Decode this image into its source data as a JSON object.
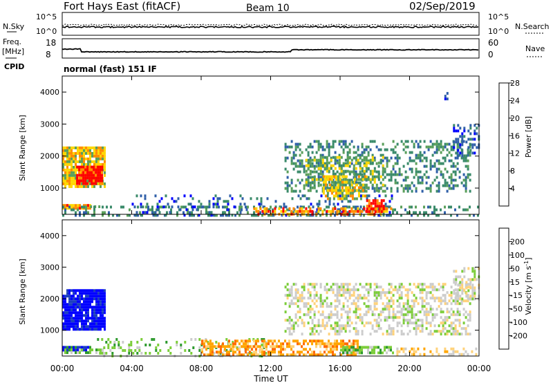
{
  "header": {
    "title": "Fort Hays East (fitACF)",
    "beam": "Beam 10",
    "date": "02/Sep/2019"
  },
  "noise_panel": {
    "left_label": "N.Sky",
    "right_label": "N.Search",
    "tick_top": "10^5",
    "tick_bottom": "10^0"
  },
  "freq_panel": {
    "left_label": "Freq.",
    "left_unit": "[MHz]",
    "right_label": "Nave",
    "left_ticks": [
      "18",
      "8"
    ],
    "right_ticks": [
      "60",
      "0"
    ],
    "cpid_label": "CPID"
  },
  "cpid_text": "normal (fast) 151 IF",
  "chart_data": [
    {
      "type": "heatmap",
      "parameter": "power",
      "ylabel": "Slant Range [km]",
      "ylim": [
        180,
        4500
      ],
      "yticks": [
        1000,
        2000,
        3000,
        4000
      ],
      "xlim": [
        0,
        24
      ],
      "colorbar_label": "Power [dB]",
      "colorbar_ticks": [
        "4",
        "8",
        "12",
        "16",
        "20",
        "24",
        "28"
      ],
      "colorbar_colors": [
        "#0000ff",
        "#2f5fa8",
        "#3a8a6a",
        "#5a9f5a",
        "#ffd700",
        "#ff8c00",
        "#ff0000"
      ],
      "regions": [
        {
          "t0": 0.0,
          "t1": 2.5,
          "r0": 1050,
          "r1": 2300,
          "level": 4,
          "density": 0.85
        },
        {
          "t0": 0.8,
          "t1": 2.3,
          "r0": 1150,
          "r1": 1700,
          "level": 6,
          "density": 0.9
        },
        {
          "t0": 0.0,
          "t1": 1.6,
          "r0": 350,
          "r1": 500,
          "level": 5,
          "density": 0.9
        },
        {
          "t0": 1.6,
          "t1": 2.3,
          "r0": 380,
          "r1": 460,
          "level": 3,
          "density": 0.7
        },
        {
          "t0": 0.0,
          "t1": 24.0,
          "r0": 180,
          "r1": 450,
          "level": 2,
          "density": 0.3
        },
        {
          "t0": 4.0,
          "t1": 19.0,
          "r0": 180,
          "r1": 800,
          "level": 1,
          "density": 0.18
        },
        {
          "t0": 11.0,
          "t1": 19.0,
          "r0": 180,
          "r1": 400,
          "level": 5,
          "density": 0.55
        },
        {
          "t0": 12.8,
          "t1": 23.5,
          "r0": 900,
          "r1": 2500,
          "level": 2,
          "density": 0.35
        },
        {
          "t0": 14.0,
          "t1": 18.5,
          "r0": 900,
          "r1": 2000,
          "level": 3,
          "density": 0.45
        },
        {
          "t0": 15.0,
          "t1": 17.5,
          "r0": 700,
          "r1": 1400,
          "level": 4,
          "density": 0.5
        },
        {
          "t0": 17.5,
          "t1": 18.5,
          "r0": 300,
          "r1": 650,
          "level": 6,
          "density": 0.6
        },
        {
          "t0": 22.5,
          "t1": 24.0,
          "r0": 2000,
          "r1": 3000,
          "level": 1,
          "density": 0.4
        },
        {
          "t0": 22.0,
          "t1": 22.2,
          "r0": 3800,
          "r1": 4000,
          "level": 1,
          "density": 0.5
        }
      ]
    },
    {
      "type": "heatmap",
      "parameter": "velocity",
      "ylabel": "Slant Range [km]",
      "xlabel": "Time UT",
      "ylim": [
        180,
        4500
      ],
      "yticks": [
        1000,
        2000,
        3000,
        4000
      ],
      "xlim": [
        0,
        24
      ],
      "xticks": [
        "00:00",
        "04:00",
        "08:00",
        "12:00",
        "16:00",
        "20:00",
        "00:00"
      ],
      "colorbar_label": "Velocity [m s",
      "colorbar_label_sup": "-1",
      "colorbar_label_end": "]",
      "colorbar_ticks": [
        "-200",
        "-100",
        "-50",
        "-15",
        "15",
        "50",
        "100",
        "200"
      ],
      "colorbar_colors": [
        "#ff0000",
        "#ff6a00",
        "#ffa500",
        "#ffd27a",
        "#cccccc",
        "#7ccd3a",
        "#2e9a2e",
        "#1c3fbf",
        "#0000ff"
      ],
      "regions": [
        {
          "t0": 0.0,
          "t1": 2.5,
          "r0": 1050,
          "r1": 2300,
          "level": 8,
          "density": 0.9
        },
        {
          "t0": 0.0,
          "t1": 1.6,
          "r0": 380,
          "r1": 500,
          "level": 7,
          "density": 0.9
        },
        {
          "t0": 0.0,
          "t1": 2.3,
          "r0": 300,
          "r1": 420,
          "level": 5,
          "density": 0.6
        },
        {
          "t0": 2.0,
          "t1": 12.0,
          "r0": 180,
          "r1": 750,
          "level": 5,
          "density": 0.22
        },
        {
          "t0": 8.0,
          "t1": 17.0,
          "r0": 180,
          "r1": 700,
          "level": 2,
          "density": 0.6
        },
        {
          "t0": 12.8,
          "t1": 23.5,
          "r0": 900,
          "r1": 2500,
          "level": 4,
          "density": 0.45
        },
        {
          "t0": 16.0,
          "t1": 19.0,
          "r0": 300,
          "r1": 500,
          "level": 5,
          "density": 0.7
        },
        {
          "t0": 19.0,
          "t1": 24.0,
          "r0": 200,
          "r1": 450,
          "level": 3,
          "density": 0.35
        },
        {
          "t0": 22.5,
          "t1": 24.0,
          "r0": 2000,
          "r1": 3000,
          "level": 4,
          "density": 0.45
        }
      ]
    }
  ]
}
